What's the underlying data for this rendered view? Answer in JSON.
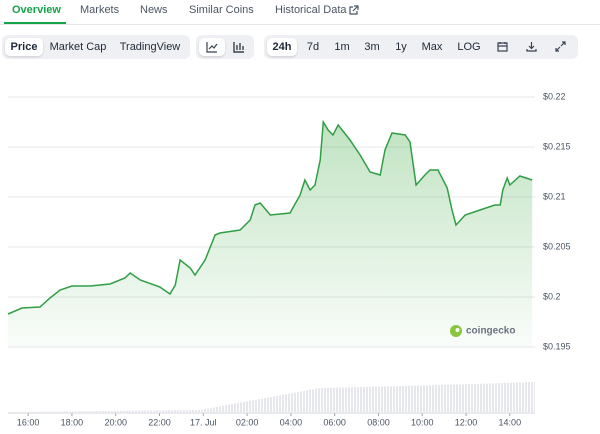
{
  "tabs": [
    "Overview",
    "Markets",
    "News",
    "Similar Coins",
    "Historical Data"
  ],
  "view_toggle": [
    "Price",
    "Market Cap",
    "TradingView"
  ],
  "ranges": [
    "24h",
    "7d",
    "1m",
    "3m",
    "1y",
    "Max",
    "LOG"
  ],
  "chart_data": {
    "type": "area",
    "watermark": "coingecko",
    "x": [
      15.08,
      15.72,
      16.54,
      17,
      17.46,
      18,
      18.84,
      19.74,
      20.42,
      20.66,
      21.12,
      22.02,
      22.48,
      22.72,
      22.94,
      23.4,
      23.62,
      24.08,
      24.54,
      24.76,
      25.68,
      26.14,
      26.36,
      26.6,
      27.06,
      27.96,
      28.42,
      28.64,
      28.88,
      29.1,
      29.34,
      29.48,
      29.7,
      29.92,
      30.16,
      30.7,
      31.16,
      31.62,
      32.08,
      32.3,
      32.62,
      33.22,
      33.44,
      33.72,
      34.12,
      34.36,
      34.72,
      35.14,
      35.36,
      35.54,
      35.96,
      36.64,
      37.32,
      37.56,
      37.68,
      37.88,
      38,
      38.46,
      39.02
    ],
    "values": [
      0.1983,
      0.1989,
      0.199,
      0.1999,
      0.2007,
      0.2011,
      0.2011,
      0.2013,
      0.2019,
      0.2024,
      0.2017,
      0.201,
      0.2003,
      0.2012,
      0.2037,
      0.2029,
      0.2022,
      0.2037,
      0.2062,
      0.2064,
      0.2067,
      0.2077,
      0.2092,
      0.2094,
      0.2082,
      0.2084,
      0.2102,
      0.2117,
      0.2107,
      0.2112,
      0.2137,
      0.2175,
      0.2167,
      0.2162,
      0.2172,
      0.2157,
      0.2142,
      0.2125,
      0.2122,
      0.2147,
      0.2164,
      0.2162,
      0.2155,
      0.2112,
      0.2122,
      0.2127,
      0.2127,
      0.2109,
      0.2087,
      0.2072,
      0.2082,
      0.2087,
      0.2092,
      0.2092,
      0.2107,
      0.2119,
      0.2112,
      0.2121,
      0.2117
    ],
    "color": "#2f9e44",
    "xlim": [
      15.08,
      39.15
    ],
    "xticks": [
      {
        "value": 16,
        "label": "16:00"
      },
      {
        "value": 18,
        "label": "18:00"
      },
      {
        "value": 20,
        "label": "20:00"
      },
      {
        "value": 22,
        "label": "22:00"
      },
      {
        "value": 24,
        "label": "17. Jul"
      },
      {
        "value": 26,
        "label": "02:00"
      },
      {
        "value": 28,
        "label": "04:00"
      },
      {
        "value": 30,
        "label": "06:00"
      },
      {
        "value": 32,
        "label": "08:00"
      },
      {
        "value": 34,
        "label": "10:00"
      },
      {
        "value": 36,
        "label": "12:00"
      },
      {
        "value": 38,
        "label": "14:00"
      }
    ],
    "ylim": [
      0.195,
      0.22
    ],
    "yticks": [
      {
        "value": 0.195,
        "label": "$0.195"
      },
      {
        "value": 0.2,
        "label": "$0.2"
      },
      {
        "value": 0.205,
        "label": "$0.205"
      },
      {
        "value": 0.21,
        "label": "$0.21"
      },
      {
        "value": 0.215,
        "label": "$0.215"
      },
      {
        "value": 0.22,
        "label": "$0.22"
      }
    ],
    "grid": true
  }
}
